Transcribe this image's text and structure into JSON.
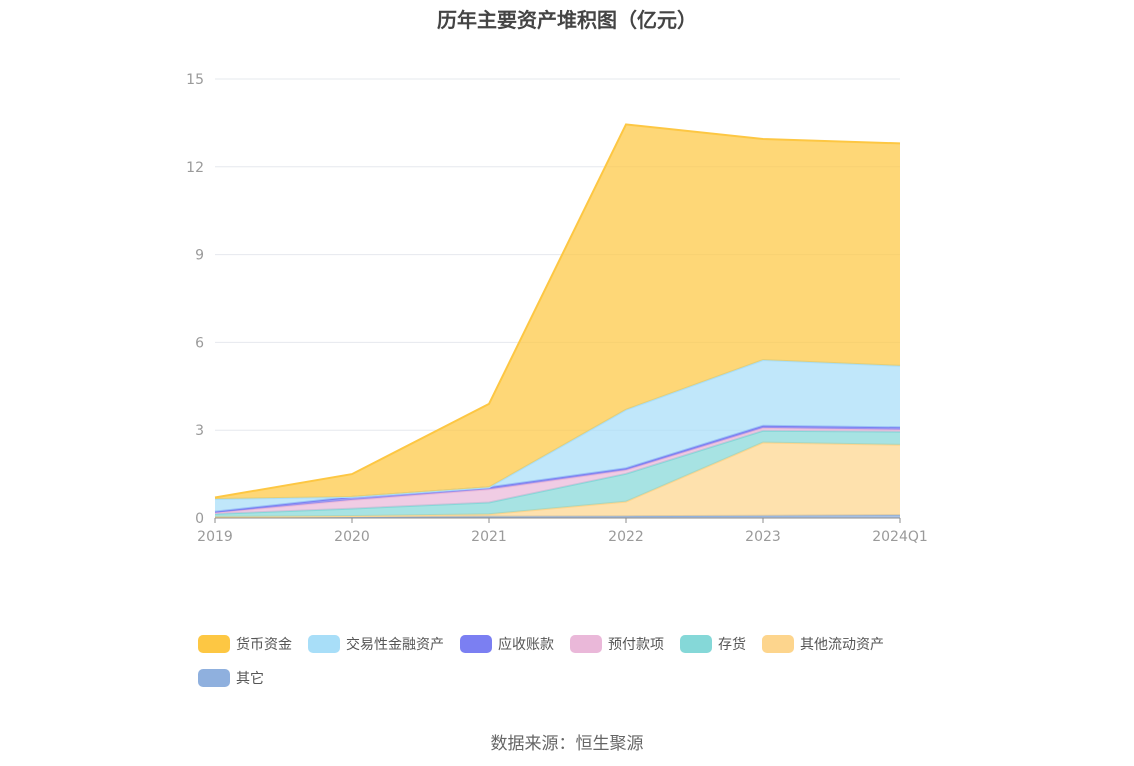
{
  "page": {
    "title": "历年主要资产堆积图（亿元）",
    "source": "数据来源：恒生聚源"
  },
  "chart_data": {
    "type": "area",
    "stacked": true,
    "title": "历年主要资产堆积图（亿元）",
    "xlabel": "",
    "ylabel": "",
    "categories": [
      "2019",
      "2020",
      "2021",
      "2022",
      "2023",
      "2024Q1"
    ],
    "ylim": [
      0,
      15
    ],
    "yticks": [
      0,
      3,
      6,
      9,
      12,
      15
    ],
    "grid": true,
    "legend_position": "bottom",
    "series": [
      {
        "name": "其它",
        "color": "#8fb0de",
        "values": [
          0.02,
          0.03,
          0.05,
          0.06,
          0.08,
          0.1
        ]
      },
      {
        "name": "其他流动资产",
        "color": "#fdd58d",
        "values": [
          0.02,
          0.04,
          0.08,
          0.5,
          2.5,
          2.4
        ]
      },
      {
        "name": "存货",
        "color": "#85d8d8",
        "values": [
          0.1,
          0.25,
          0.4,
          0.95,
          0.4,
          0.45
        ]
      },
      {
        "name": "预付款项",
        "color": "#eab8d9",
        "values": [
          0.04,
          0.3,
          0.45,
          0.13,
          0.1,
          0.07
        ]
      },
      {
        "name": "应收账款",
        "color": "#7b7ff2",
        "values": [
          0.04,
          0.1,
          0.07,
          0.06,
          0.07,
          0.08
        ]
      },
      {
        "name": "交易性金融资产",
        "color": "#a8def8",
        "values": [
          0.43,
          0.0,
          0.0,
          2.0,
          2.25,
          2.1
        ]
      },
      {
        "name": "货币资金",
        "color": "#fdc743",
        "values": [
          0.05,
          0.78,
          2.85,
          9.75,
          7.55,
          7.6
        ]
      }
    ],
    "legend_order": [
      "货币资金",
      "交易性金融资产",
      "应收账款",
      "预付款项",
      "存货",
      "其他流动资产",
      "其它"
    ]
  }
}
